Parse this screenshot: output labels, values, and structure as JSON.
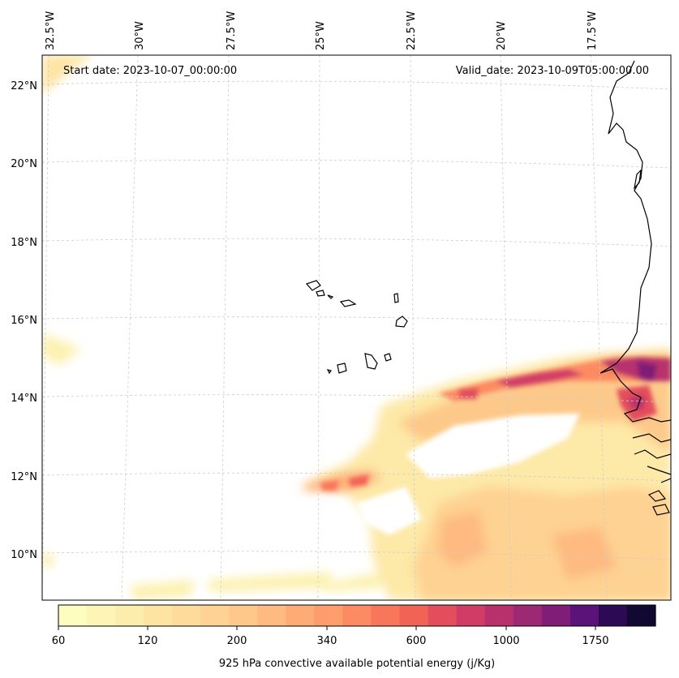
{
  "map": {
    "start_date": "Start date: 2023-10-07_00:00:00",
    "valid_date": "Valid_date: 2023-10-09T05:00:00.00",
    "lon_labels": [
      "32.5°W",
      "30°W",
      "27.5°W",
      "25°W",
      "22.5°W",
      "20°W",
      "17.5°W"
    ],
    "lat_labels": [
      "22°N",
      "20°N",
      "18°N",
      "16°N",
      "14°N",
      "12°N",
      "10°N"
    ],
    "gridlines": true,
    "coastline_color": "#000000",
    "gridline_color": "#cccccc"
  },
  "colorbar": {
    "ticks": [
      "60",
      "120",
      "200",
      "340",
      "600",
      "1000",
      "1750"
    ],
    "label": "925 hPa convective available potential energy (j/Kg)",
    "colors": [
      "#fcfdbf",
      "#fcf5b6",
      "#fcedac",
      "#fde4a3",
      "#fddb9a",
      "#fed292",
      "#fec88a",
      "#feba80",
      "#feac76",
      "#fd9c6d",
      "#fc8b64",
      "#f8775b",
      "#f16354",
      "#e34e5c",
      "#d03c66",
      "#b8316d",
      "#9d2873",
      "#7f1d77",
      "#5b137a",
      "#2c0a54",
      "#120932"
    ]
  }
}
